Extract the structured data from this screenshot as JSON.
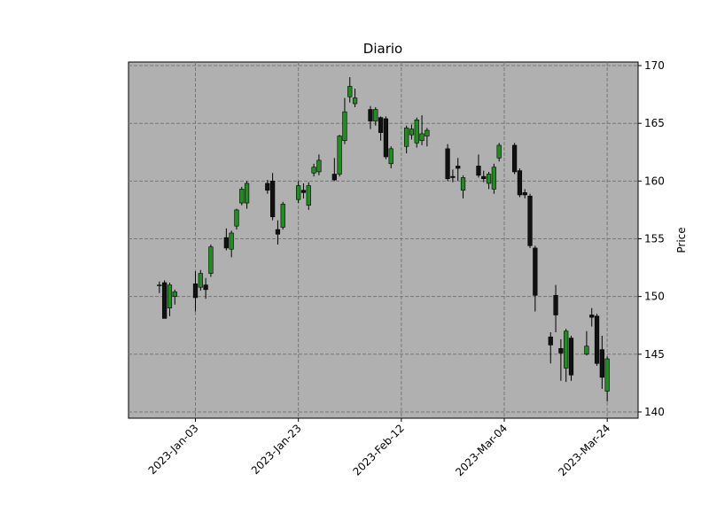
{
  "chart_data": {
    "type": "candlestick",
    "title": "Diario",
    "y_label": "Price",
    "x": [
      "2022-12-27",
      "2022-12-28",
      "2022-12-29",
      "2022-12-30",
      "2023-01-03",
      "2023-01-04",
      "2023-01-05",
      "2023-01-06",
      "2023-01-09",
      "2023-01-10",
      "2023-01-11",
      "2023-01-12",
      "2023-01-13",
      "2023-01-17",
      "2023-01-18",
      "2023-01-19",
      "2023-01-20",
      "2023-01-23",
      "2023-01-24",
      "2023-01-25",
      "2023-01-26",
      "2023-01-27",
      "2023-01-30",
      "2023-01-31",
      "2023-02-01",
      "2023-02-02",
      "2023-02-03",
      "2023-02-06",
      "2023-02-07",
      "2023-02-08",
      "2023-02-09",
      "2023-02-10",
      "2023-02-13",
      "2023-02-14",
      "2023-02-15",
      "2023-02-16",
      "2023-02-17",
      "2023-02-21",
      "2023-02-22",
      "2023-02-23",
      "2023-02-24",
      "2023-02-27",
      "2023-02-28",
      "2023-03-01",
      "2023-03-02",
      "2023-03-03",
      "2023-03-06",
      "2023-03-07",
      "2023-03-08",
      "2023-03-09",
      "2023-03-10",
      "2023-03-13",
      "2023-03-14",
      "2023-03-15",
      "2023-03-16",
      "2023-03-17",
      "2023-03-20",
      "2023-03-21",
      "2023-03-22",
      "2023-03-23",
      "2023-03-24"
    ],
    "open": [
      151.0,
      151.2,
      149.0,
      150.0,
      151.1,
      150.8,
      151.0,
      152.0,
      155.1,
      154.1,
      156.1,
      158.1,
      158.1,
      159.8,
      160.0,
      155.8,
      156.0,
      158.4,
      159.2,
      157.9,
      160.7,
      160.8,
      160.6,
      160.6,
      163.5,
      167.3,
      166.7,
      166.2,
      165.2,
      165.5,
      165.4,
      161.5,
      163.0,
      164.0,
      163.3,
      163.5,
      163.9,
      162.8,
      160.4,
      161.3,
      159.2,
      161.3,
      160.4,
      159.8,
      159.3,
      162.0,
      163.1,
      160.9,
      159.0,
      158.7,
      154.2,
      146.5,
      150.1,
      145.5,
      143.8,
      146.4,
      145.0,
      148.4,
      148.3,
      145.4,
      141.8
    ],
    "high": [
      151.3,
      151.4,
      151.2,
      150.6,
      152.2,
      152.3,
      151.6,
      154.5,
      155.9,
      155.7,
      157.6,
      159.5,
      160.0,
      160.1,
      160.7,
      156.6,
      158.2,
      160.0,
      159.8,
      159.9,
      161.5,
      162.3,
      162.0,
      164.0,
      167.2,
      169.0,
      168.0,
      166.5,
      166.4,
      165.6,
      165.6,
      163.0,
      164.8,
      164.9,
      165.5,
      165.7,
      164.6,
      163.2,
      161.0,
      162.0,
      160.5,
      162.3,
      160.9,
      160.8,
      161.5,
      163.3,
      163.3,
      161.1,
      159.3,
      158.9,
      154.4,
      146.9,
      151.0,
      146.3,
      147.2,
      146.6,
      147.0,
      149.0,
      148.5,
      146.6,
      144.8
    ],
    "low": [
      150.3,
      148.1,
      148.3,
      149.3,
      148.7,
      150.5,
      149.8,
      151.7,
      154.0,
      153.4,
      155.8,
      157.9,
      157.6,
      158.9,
      156.6,
      154.5,
      155.8,
      158.1,
      158.5,
      157.5,
      160.4,
      160.5,
      160.0,
      160.4,
      163.2,
      166.8,
      166.4,
      164.5,
      164.8,
      163.5,
      161.9,
      161.1,
      162.4,
      163.6,
      162.9,
      163.1,
      163.0,
      160.0,
      159.9,
      160.0,
      158.5,
      160.3,
      159.9,
      159.3,
      158.9,
      161.7,
      160.6,
      158.6,
      158.5,
      154.2,
      148.7,
      144.2,
      146.9,
      142.7,
      142.6,
      142.7,
      144.9,
      147.4,
      144.0,
      142.0,
      140.9
    ],
    "close": [
      151.0,
      148.1,
      151.0,
      150.4,
      149.9,
      152.0,
      150.6,
      154.3,
      154.2,
      155.5,
      157.5,
      159.3,
      159.8,
      159.2,
      156.9,
      155.4,
      158.0,
      159.6,
      159.0,
      159.6,
      161.2,
      161.8,
      160.1,
      163.9,
      166.0,
      168.2,
      167.2,
      165.2,
      166.2,
      164.2,
      162.1,
      162.8,
      164.6,
      164.5,
      165.3,
      164.1,
      164.4,
      160.2,
      160.3,
      161.1,
      160.3,
      160.5,
      160.2,
      160.6,
      161.2,
      163.1,
      160.8,
      158.8,
      158.8,
      154.4,
      150.1,
      145.8,
      148.4,
      145.1,
      147.0,
      143.2,
      145.7,
      148.2,
      144.2,
      143.0,
      144.6
    ],
    "up_color": "#228b22",
    "down_color": "#111111",
    "xlim": [
      "2022-12-21",
      "2023-03-30"
    ],
    "xticks": [
      {
        "value": "2023-01-03",
        "label": "2023-Jan-03"
      },
      {
        "value": "2023-01-23",
        "label": "2023-Jan-23"
      },
      {
        "value": "2023-02-12",
        "label": "2023-Feb-12"
      },
      {
        "value": "2023-03-04",
        "label": "2023-Mar-04"
      },
      {
        "value": "2023-03-24",
        "label": "2023-Mar-24"
      }
    ],
    "ylim": [
      139.46,
      170.31
    ],
    "yticks": [
      140,
      145,
      150,
      155,
      160,
      165,
      170
    ],
    "grid": true,
    "background": "#b0b0b0"
  }
}
